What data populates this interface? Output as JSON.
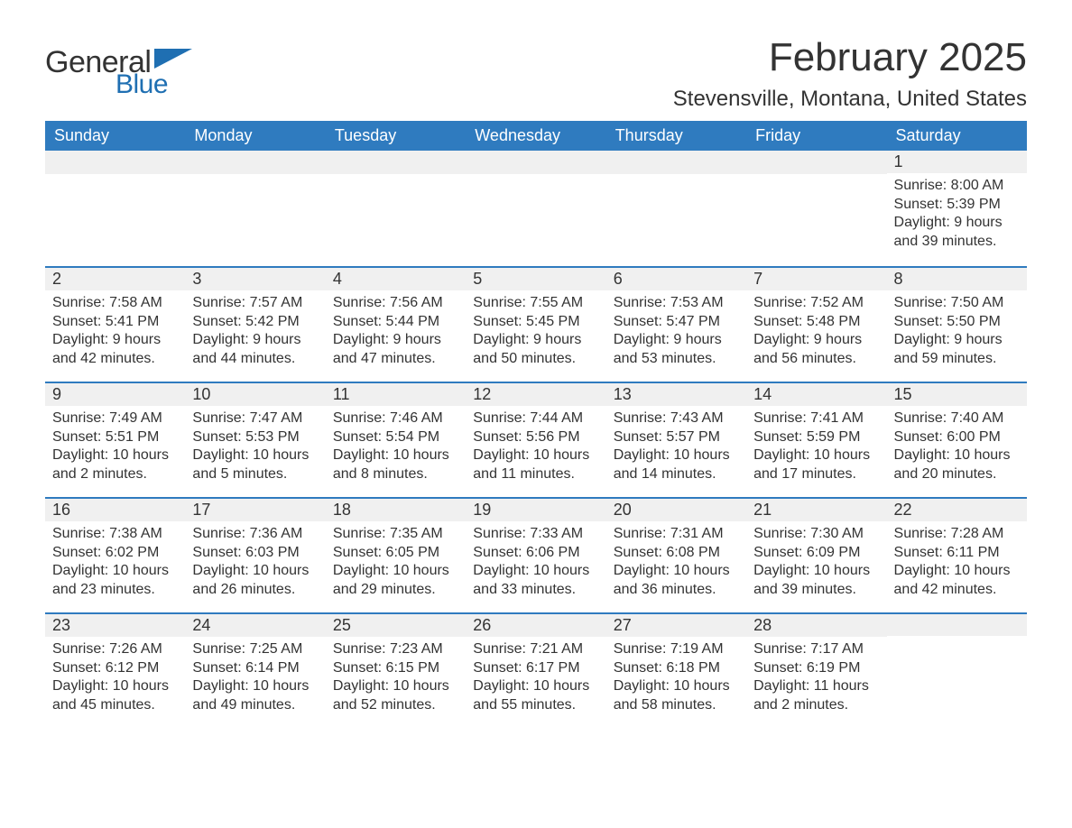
{
  "logo": {
    "word1": "General",
    "word2": "Blue",
    "flag_color": "#1f6fb2",
    "text_color_dark": "#333333",
    "text_color_blue": "#1f6fb2"
  },
  "title": "February 2025",
  "location": "Stevensville, Montana, United States",
  "colors": {
    "header_bg": "#2f7bbf",
    "header_text": "#ffffff",
    "daynum_bg": "#f0f0f0",
    "row_border": "#2f7bbf",
    "body_text": "#333333",
    "page_bg": "#ffffff"
  },
  "day_labels": [
    "Sunday",
    "Monday",
    "Tuesday",
    "Wednesday",
    "Thursday",
    "Friday",
    "Saturday"
  ],
  "first_weekday_index": 6,
  "days_in_month": 28,
  "days": {
    "1": {
      "sunrise": "8:00 AM",
      "sunset": "5:39 PM",
      "daylight": "9 hours and 39 minutes."
    },
    "2": {
      "sunrise": "7:58 AM",
      "sunset": "5:41 PM",
      "daylight": "9 hours and 42 minutes."
    },
    "3": {
      "sunrise": "7:57 AM",
      "sunset": "5:42 PM",
      "daylight": "9 hours and 44 minutes."
    },
    "4": {
      "sunrise": "7:56 AM",
      "sunset": "5:44 PM",
      "daylight": "9 hours and 47 minutes."
    },
    "5": {
      "sunrise": "7:55 AM",
      "sunset": "5:45 PM",
      "daylight": "9 hours and 50 minutes."
    },
    "6": {
      "sunrise": "7:53 AM",
      "sunset": "5:47 PM",
      "daylight": "9 hours and 53 minutes."
    },
    "7": {
      "sunrise": "7:52 AM",
      "sunset": "5:48 PM",
      "daylight": "9 hours and 56 minutes."
    },
    "8": {
      "sunrise": "7:50 AM",
      "sunset": "5:50 PM",
      "daylight": "9 hours and 59 minutes."
    },
    "9": {
      "sunrise": "7:49 AM",
      "sunset": "5:51 PM",
      "daylight": "10 hours and 2 minutes."
    },
    "10": {
      "sunrise": "7:47 AM",
      "sunset": "5:53 PM",
      "daylight": "10 hours and 5 minutes."
    },
    "11": {
      "sunrise": "7:46 AM",
      "sunset": "5:54 PM",
      "daylight": "10 hours and 8 minutes."
    },
    "12": {
      "sunrise": "7:44 AM",
      "sunset": "5:56 PM",
      "daylight": "10 hours and 11 minutes."
    },
    "13": {
      "sunrise": "7:43 AM",
      "sunset": "5:57 PM",
      "daylight": "10 hours and 14 minutes."
    },
    "14": {
      "sunrise": "7:41 AM",
      "sunset": "5:59 PM",
      "daylight": "10 hours and 17 minutes."
    },
    "15": {
      "sunrise": "7:40 AM",
      "sunset": "6:00 PM",
      "daylight": "10 hours and 20 minutes."
    },
    "16": {
      "sunrise": "7:38 AM",
      "sunset": "6:02 PM",
      "daylight": "10 hours and 23 minutes."
    },
    "17": {
      "sunrise": "7:36 AM",
      "sunset": "6:03 PM",
      "daylight": "10 hours and 26 minutes."
    },
    "18": {
      "sunrise": "7:35 AM",
      "sunset": "6:05 PM",
      "daylight": "10 hours and 29 minutes."
    },
    "19": {
      "sunrise": "7:33 AM",
      "sunset": "6:06 PM",
      "daylight": "10 hours and 33 minutes."
    },
    "20": {
      "sunrise": "7:31 AM",
      "sunset": "6:08 PM",
      "daylight": "10 hours and 36 minutes."
    },
    "21": {
      "sunrise": "7:30 AM",
      "sunset": "6:09 PM",
      "daylight": "10 hours and 39 minutes."
    },
    "22": {
      "sunrise": "7:28 AM",
      "sunset": "6:11 PM",
      "daylight": "10 hours and 42 minutes."
    },
    "23": {
      "sunrise": "7:26 AM",
      "sunset": "6:12 PM",
      "daylight": "10 hours and 45 minutes."
    },
    "24": {
      "sunrise": "7:25 AM",
      "sunset": "6:14 PM",
      "daylight": "10 hours and 49 minutes."
    },
    "25": {
      "sunrise": "7:23 AM",
      "sunset": "6:15 PM",
      "daylight": "10 hours and 52 minutes."
    },
    "26": {
      "sunrise": "7:21 AM",
      "sunset": "6:17 PM",
      "daylight": "10 hours and 55 minutes."
    },
    "27": {
      "sunrise": "7:19 AM",
      "sunset": "6:18 PM",
      "daylight": "10 hours and 58 minutes."
    },
    "28": {
      "sunrise": "7:17 AM",
      "sunset": "6:19 PM",
      "daylight": "11 hours and 2 minutes."
    }
  },
  "labels": {
    "sunrise_prefix": "Sunrise: ",
    "sunset_prefix": "Sunset: ",
    "daylight_prefix": "Daylight: "
  }
}
